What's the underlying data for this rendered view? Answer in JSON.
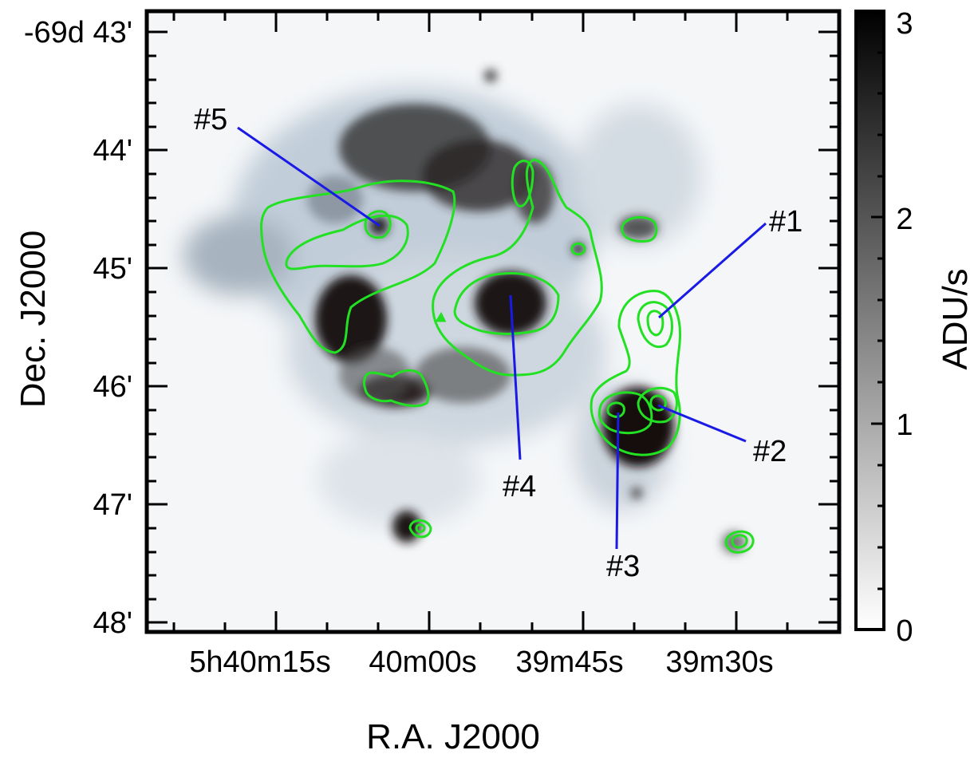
{
  "figure": {
    "x_axis": {
      "title": "R.A. J2000",
      "tick_labels": [
        "5h40m15s",
        "40m00s",
        "39m45s",
        "39m30s"
      ]
    },
    "y_axis": {
      "title": "Dec. J2000",
      "tick_labels": [
        "-69d 43'",
        "44'",
        "45'",
        "46'",
        "47'",
        "48'"
      ]
    },
    "colorbar": {
      "title": "ADU/s",
      "tick_labels": [
        "0",
        "1",
        "2",
        "3"
      ],
      "range": [
        0,
        3
      ],
      "colormap": "grayscale (white = 0, black = 3)"
    },
    "image": {
      "description_colors": {
        "background": "#f4f6f8",
        "dense": "#1a1414",
        "tint": "#b9c7d4"
      }
    },
    "contours": {
      "color": "#22e022"
    },
    "annotation_line_color": "#1a1ae6",
    "sources": [
      {
        "id": "src1",
        "label": "#1"
      },
      {
        "id": "src2",
        "label": "#2"
      },
      {
        "id": "src3",
        "label": "#3"
      },
      {
        "id": "src4",
        "label": "#4"
      },
      {
        "id": "src5",
        "label": "#5"
      }
    ]
  }
}
